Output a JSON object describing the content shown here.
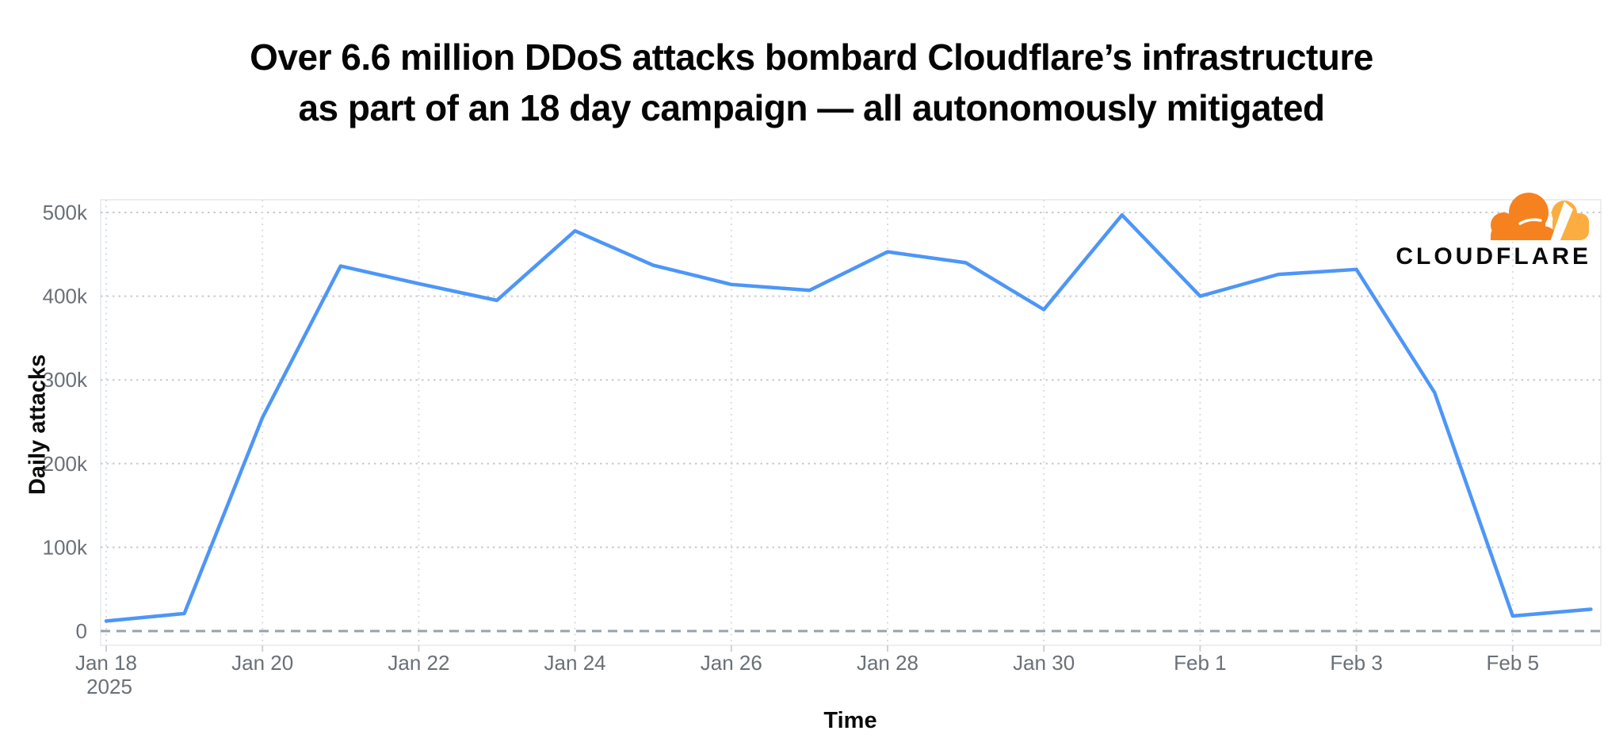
{
  "title": {
    "line1": "Over 6.6 million DDoS attacks bombard Cloudflare’s infrastructure",
    "line2": "as part of an 18 day campaign — all autonomously mitigated"
  },
  "logo": {
    "wordmark": "CLOUDFLARE",
    "colors": {
      "cloud_orange": "#F6821F",
      "cloud_light_orange": "#FBAD41",
      "wordmark_black": "#0A0A0A"
    }
  },
  "chart_data": {
    "type": "line",
    "title": "Over 6.6 million DDoS attacks bombard Cloudflare’s infrastructure as part of an 18 day campaign — all autonomously mitigated",
    "xlabel": "Time",
    "ylabel": "Daily attacks",
    "x": [
      "Jan 18",
      "Jan 19",
      "Jan 20",
      "Jan 21",
      "Jan 22",
      "Jan 23",
      "Jan 24",
      "Jan 25",
      "Jan 26",
      "Jan 27",
      "Jan 28",
      "Jan 29",
      "Jan 30",
      "Jan 31",
      "Feb 1",
      "Feb 2",
      "Feb 3",
      "Feb 4",
      "Feb 5",
      "Feb 6"
    ],
    "year": "2025",
    "series": [
      {
        "name": "Daily attacks",
        "color": "#4D96F7",
        "values": [
          12000,
          21000,
          255000,
          436000,
          415000,
          395000,
          478000,
          437000,
          414000,
          407000,
          453000,
          440000,
          384000,
          497000,
          400000,
          426000,
          432000,
          285000,
          18000,
          26000
        ]
      }
    ],
    "ylim": [
      0,
      500000
    ],
    "yticks": [
      {
        "value": 0,
        "label": "0"
      },
      {
        "value": 100000,
        "label": "100k"
      },
      {
        "value": 200000,
        "label": "200k"
      },
      {
        "value": 300000,
        "label": "300k"
      },
      {
        "value": 400000,
        "label": "400k"
      },
      {
        "value": 500000,
        "label": "500k"
      }
    ],
    "xticks": [
      {
        "index": 0,
        "label": "Jan 18",
        "sublabel": "2025"
      },
      {
        "index": 2,
        "label": "Jan 20"
      },
      {
        "index": 4,
        "label": "Jan 22"
      },
      {
        "index": 6,
        "label": "Jan 24"
      },
      {
        "index": 8,
        "label": "Jan 26"
      },
      {
        "index": 10,
        "label": "Jan 28"
      },
      {
        "index": 12,
        "label": "Jan 30"
      },
      {
        "index": 14,
        "label": "Feb 1"
      },
      {
        "index": 16,
        "label": "Feb 3"
      },
      {
        "index": 18,
        "label": "Feb 5"
      }
    ],
    "grid": "dotted gray horizontal lines per 100k and vertical lines per 2 days",
    "zero_line": "dashed gray",
    "legend_position": "none"
  }
}
